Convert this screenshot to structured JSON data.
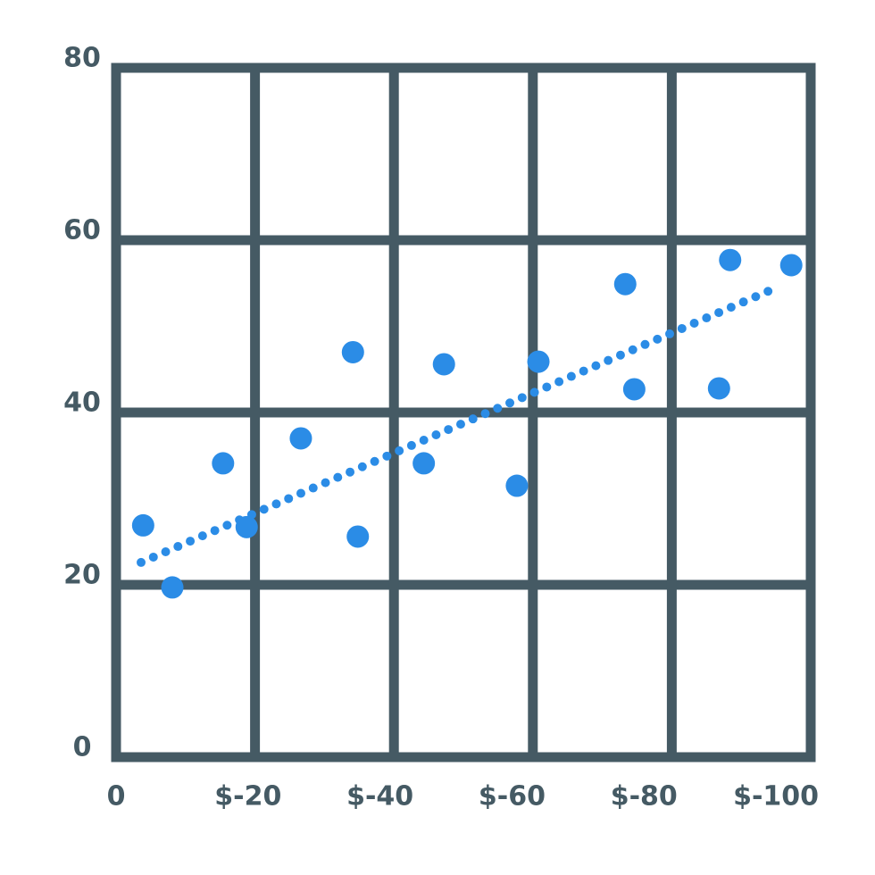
{
  "chart_data": {
    "type": "scatter",
    "x": [
      -3.9,
      -8.1,
      -15.4,
      -18.8,
      -26.6,
      -34.1,
      -34.8,
      -44.3,
      -47.2,
      -57.7,
      -60.8,
      -73.3,
      -74.6,
      -86.8,
      -88.4,
      -97.2
    ],
    "y": [
      26.9,
      19.7,
      34.1,
      26.7,
      37.0,
      47.0,
      25.6,
      34.1,
      45.6,
      31.5,
      45.9,
      54.9,
      42.7,
      42.8,
      57.7,
      57.1
    ],
    "color": "#2b8ce6",
    "trend": {
      "x": [
        -3.6,
        -95.1
      ],
      "y": [
        22.6,
        54.5
      ],
      "color": "#2b8ce6"
    },
    "xlim": [
      0,
      -100
    ],
    "xticks": [
      0,
      {
        "value": -20,
        "label": "$-20"
      },
      {
        "value": -40,
        "label": "$-40"
      },
      {
        "value": -60,
        "label": "$-60"
      },
      {
        "value": -80,
        "label": "$-80"
      },
      {
        "value": -100,
        "label": "$-100"
      }
    ],
    "ylim": [
      0,
      80
    ],
    "yticks": [
      0,
      20,
      40,
      60,
      80
    ],
    "grid": true,
    "grid_color": "#455a64"
  }
}
